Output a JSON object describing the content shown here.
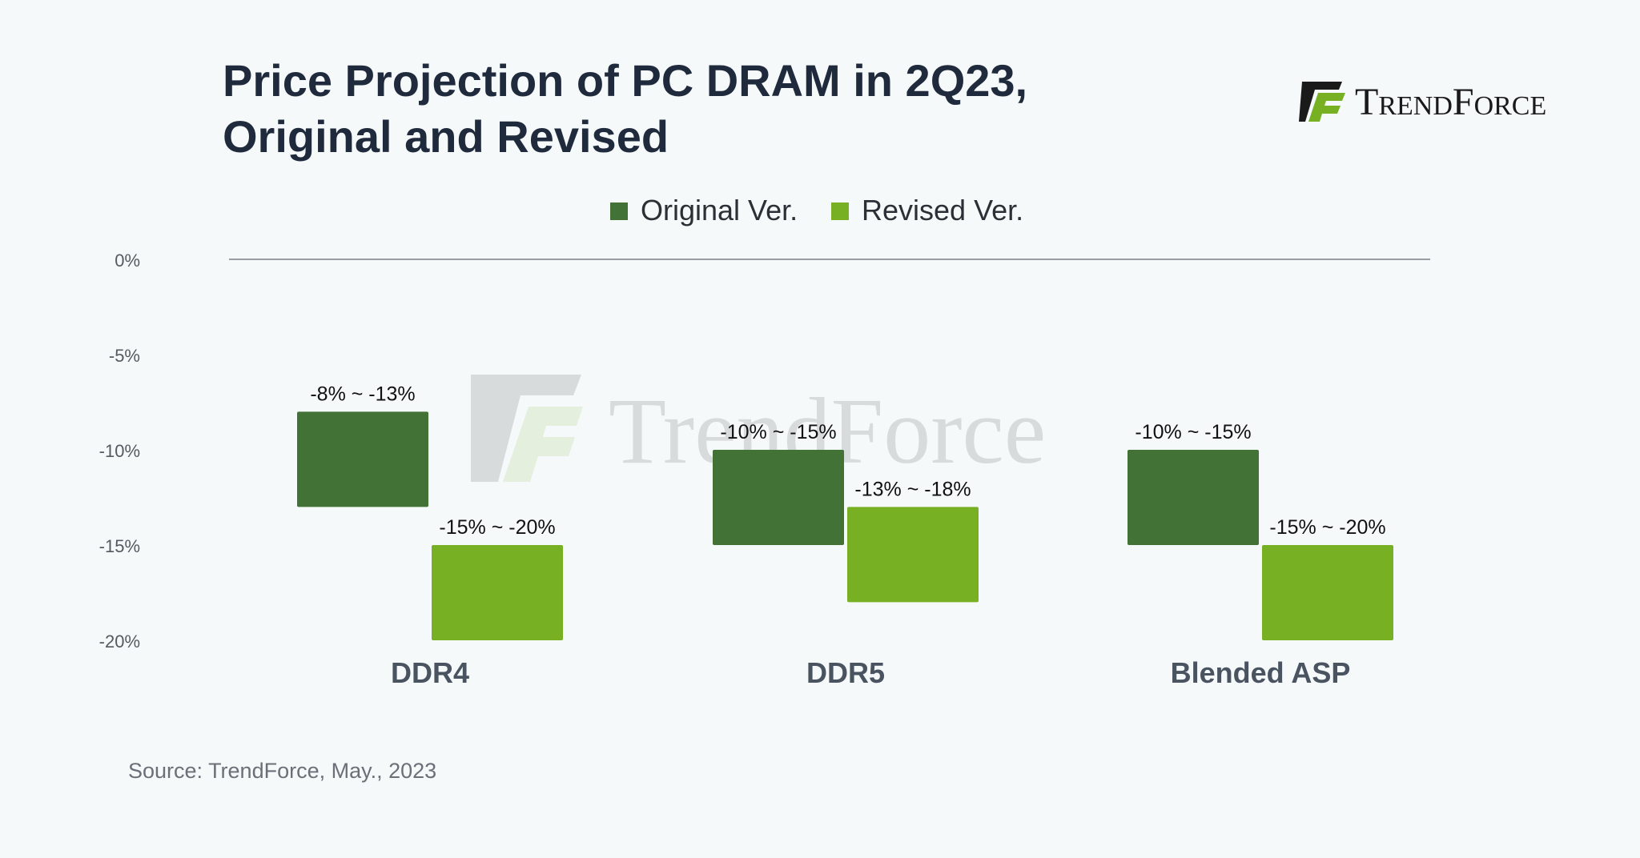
{
  "chart_title_line1": "Price Projection of PC DRAM in 2Q23,",
  "chart_title_line2": "Original and Revised",
  "logo_text": "TrendForce",
  "watermark_text": "TrendForce",
  "source": "Source: TrendForce, May., 2023",
  "colors": {
    "original": "#427236",
    "revised": "#77b023",
    "title": "#1f2a3c",
    "axis_text": "#555a62",
    "category_text": "#4a5360"
  },
  "chart_data": {
    "type": "bar",
    "title": "Price Projection of PC DRAM in 2Q23, Original and Revised",
    "categories": [
      "DDR4",
      "DDR5",
      "Blended ASP"
    ],
    "series": [
      {
        "name": "Original Ver.",
        "ranges": [
          [
            -8,
            -13
          ],
          [
            -10,
            -15
          ],
          [
            -10,
            -15
          ]
        ],
        "labels": [
          "-8% ~ -13%",
          "-10% ~ -15%",
          "-10% ~ -15%"
        ]
      },
      {
        "name": "Revised Ver.",
        "ranges": [
          [
            -15,
            -20
          ],
          [
            -13,
            -18
          ],
          [
            -15,
            -20
          ]
        ],
        "labels": [
          "-15% ~ -20%",
          "-13% ~ -18%",
          "-15% ~ -20%"
        ]
      }
    ],
    "yticks": [
      0,
      -5,
      -10,
      -15,
      -20
    ],
    "ytick_labels": [
      "0%",
      "-5%",
      "-10%",
      "-15%",
      "-20%"
    ],
    "ylim": [
      -20,
      0
    ],
    "legend_position": "top-center",
    "grid": false
  }
}
